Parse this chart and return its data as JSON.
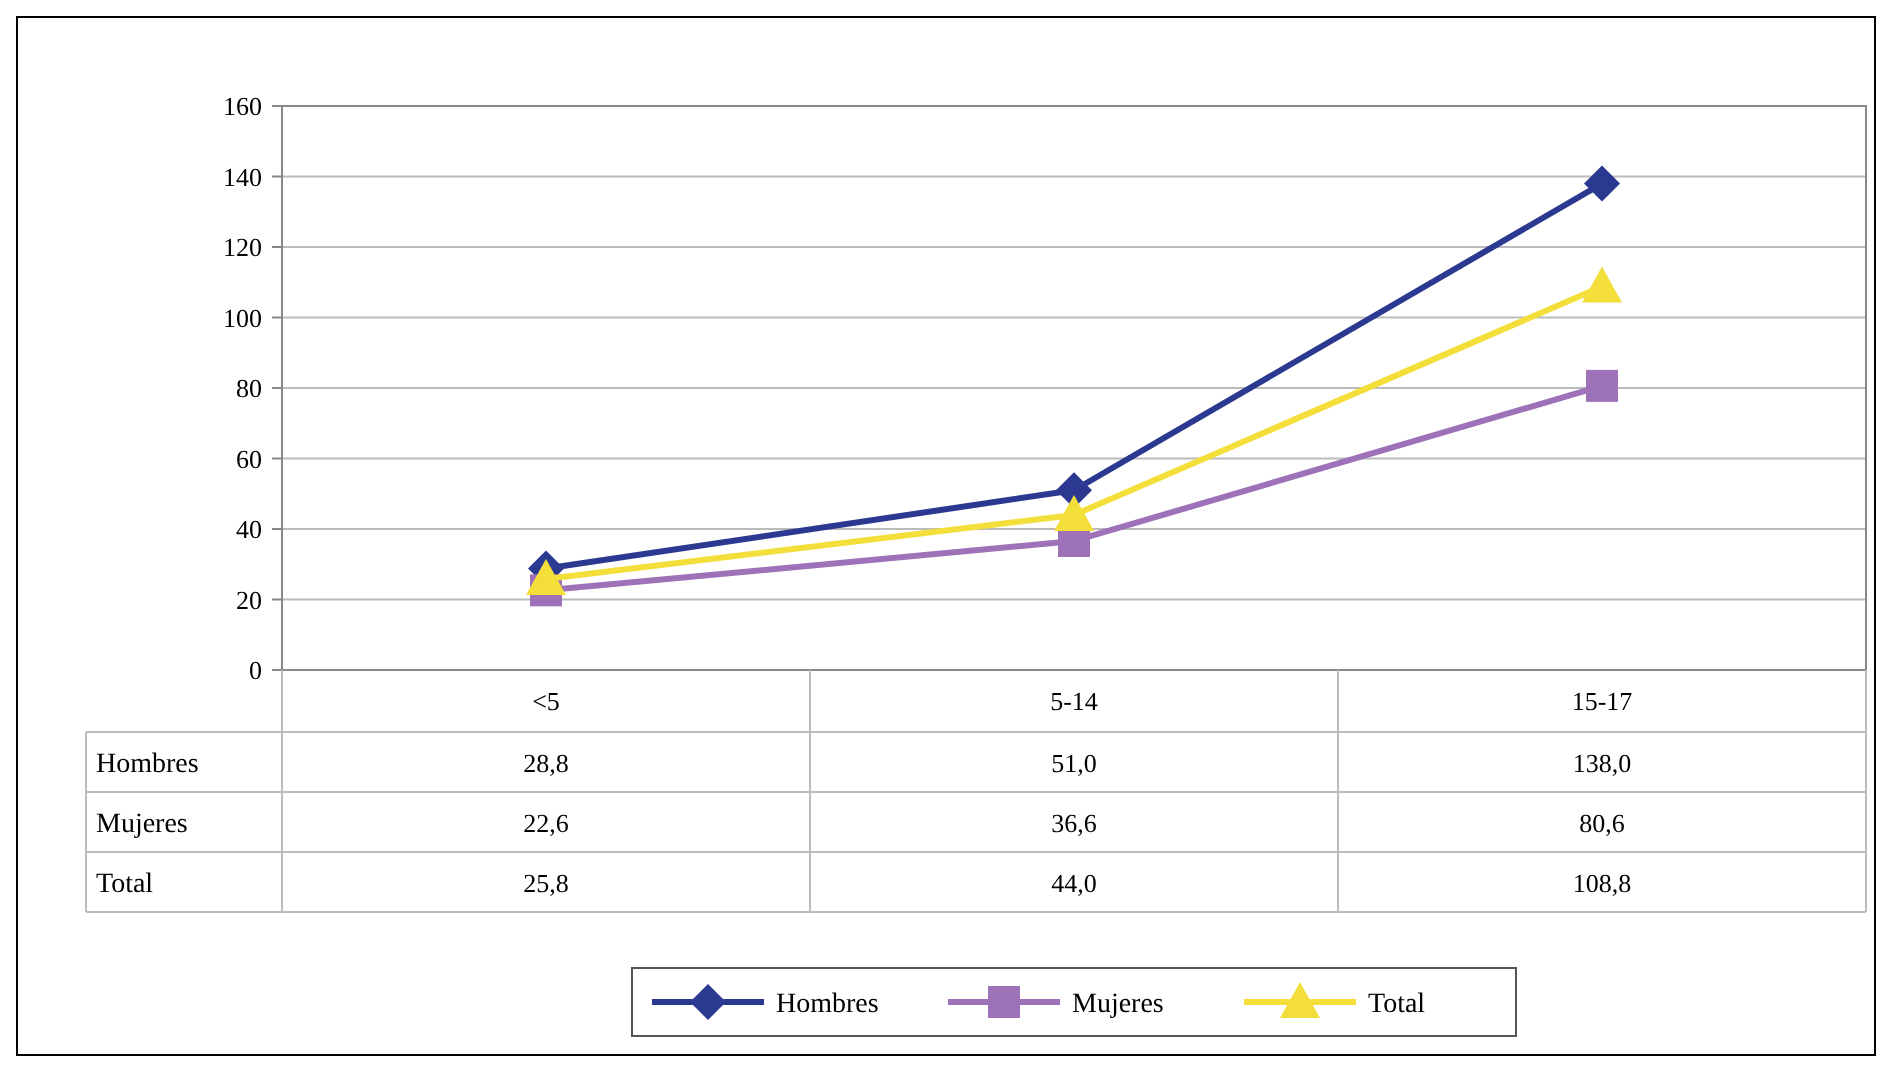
{
  "chart_data": {
    "type": "line",
    "categories": [
      "<5",
      "5-14",
      "15-17"
    ],
    "series": [
      {
        "name": "Hombres",
        "color": "#2b3990",
        "marker": "diamond",
        "values": [
          28.8,
          51.0,
          138.0
        ],
        "value_labels": [
          "28,8",
          "51,0",
          "138,0"
        ]
      },
      {
        "name": "Mujeres",
        "color": "#9e72b8",
        "marker": "square",
        "values": [
          22.6,
          36.6,
          80.6
        ],
        "value_labels": [
          "22,6",
          "36,6",
          "80,6"
        ]
      },
      {
        "name": "Total",
        "color": "#f4df3a",
        "marker": "triangle",
        "values": [
          25.8,
          44.0,
          108.8
        ],
        "value_labels": [
          "25,8",
          "44,0",
          "108,8"
        ]
      }
    ],
    "ylim": [
      0,
      160
    ],
    "yticks": [
      0,
      20,
      40,
      60,
      80,
      100,
      120,
      140,
      160
    ],
    "grid": "y",
    "legend": "bottom",
    "line_style": "solid"
  }
}
